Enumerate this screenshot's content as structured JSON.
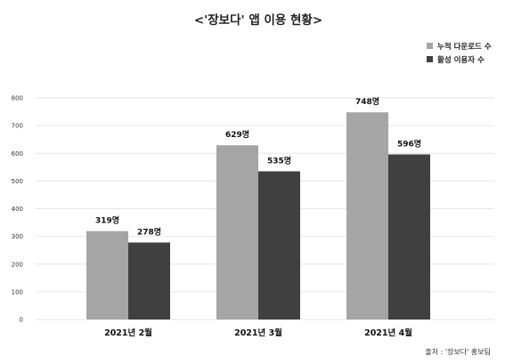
{
  "chart_data": {
    "type": "bar",
    "title": "<'장보다' 앱 이용 현황>",
    "categories": [
      "2021년 2월",
      "2021년 3월",
      "2021년 4월"
    ],
    "series": [
      {
        "name": "누적 다운로드 수",
        "values": [
          319,
          629,
          748
        ],
        "labels": [
          "319명",
          "629명",
          "748명"
        ],
        "color": "#a5a5a5"
      },
      {
        "name": "활성 이용자 수",
        "values": [
          278,
          535,
          596
        ],
        "labels": [
          "278명",
          "535명",
          "596명"
        ],
        "color": "#404040"
      }
    ],
    "yticks": [
      0,
      100,
      200,
      300,
      400,
      500,
      600,
      700,
      800
    ],
    "ylim": [
      0,
      800
    ],
    "grid": true,
    "legend_position": "top-right",
    "xlabel": "",
    "ylabel": ""
  },
  "source": "출처 : '장보다' 홍보팀"
}
